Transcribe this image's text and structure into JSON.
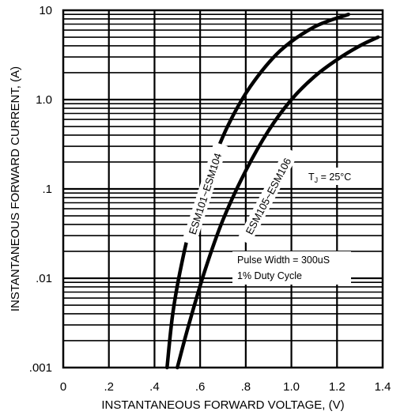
{
  "chart_data": {
    "type": "line",
    "title": "",
    "xlabel": "INSTANTANEOUS FORWARD VOLTAGE, (V)",
    "ylabel": "INSTANTANEOUS FORWARD CURRENT, (A)",
    "xlim": [
      0,
      1.4
    ],
    "ylim": [
      0.001,
      10
    ],
    "y_scale": "log",
    "grid": true,
    "x_ticks": [
      {
        "value": 0,
        "label": "0"
      },
      {
        "value": 0.2,
        "label": ".2"
      },
      {
        "value": 0.4,
        "label": ".4"
      },
      {
        "value": 0.6,
        "label": ".6"
      },
      {
        "value": 0.8,
        "label": ".8"
      },
      {
        "value": 1.0,
        "label": "1.0"
      },
      {
        "value": 1.2,
        "label": "1.2"
      },
      {
        "value": 1.4,
        "label": "1.4"
      }
    ],
    "y_ticks": [
      {
        "value": 0.001,
        "label": ".001"
      },
      {
        "value": 0.01,
        "label": ".01"
      },
      {
        "value": 0.1,
        "label": ".1"
      },
      {
        "value": 1,
        "label": "1.0"
      },
      {
        "value": 10,
        "label": "10"
      }
    ],
    "series": [
      {
        "name": "ESM101~ESM104",
        "points": [
          [
            0.455,
            0.001
          ],
          [
            0.48,
            0.004
          ],
          [
            0.52,
            0.015
          ],
          [
            0.57,
            0.05
          ],
          [
            0.64,
            0.16
          ],
          [
            0.72,
            0.5
          ],
          [
            0.82,
            1.4
          ],
          [
            0.95,
            3.5
          ],
          [
            1.1,
            6.5
          ],
          [
            1.25,
            9.0
          ]
        ]
      },
      {
        "name": "ESM105~ESM106",
        "points": [
          [
            0.5,
            0.001
          ],
          [
            0.55,
            0.003
          ],
          [
            0.62,
            0.012
          ],
          [
            0.7,
            0.045
          ],
          [
            0.8,
            0.16
          ],
          [
            0.9,
            0.45
          ],
          [
            1.0,
            1.0
          ],
          [
            1.1,
            1.8
          ],
          [
            1.2,
            2.8
          ],
          [
            1.3,
            4.0
          ],
          [
            1.38,
            5.0
          ]
        ]
      }
    ],
    "annotations": {
      "tj": "T",
      "tj_sub": "J",
      "tj_value": " = 25°C",
      "pulse_width": "Pulse Width = 300uS",
      "duty_cycle": "1% Duty Cycle"
    }
  }
}
